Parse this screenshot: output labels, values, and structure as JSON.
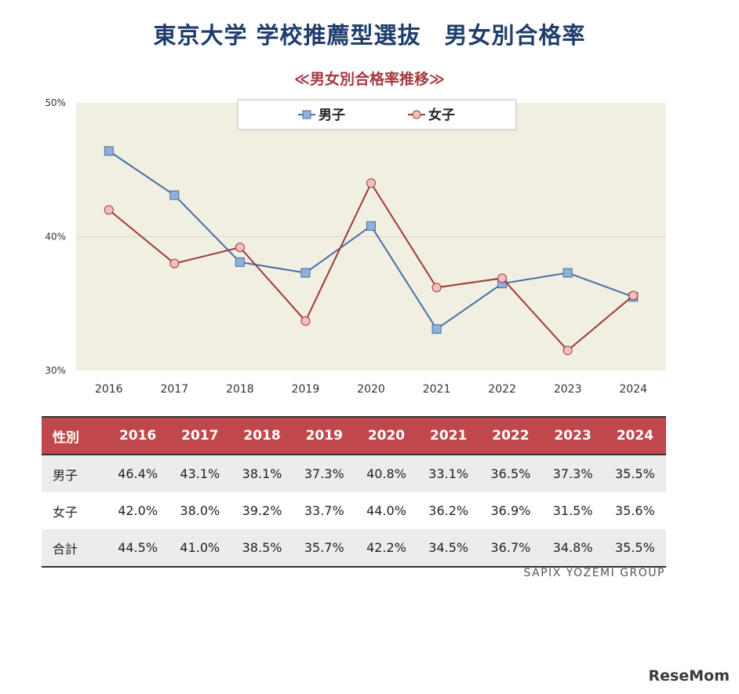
{
  "title": "東京大学 学校推薦型選抜　男女別合格率",
  "subtitle": "≪男女別合格率推移≫",
  "source": "SAPIX YOZEMI GROUP",
  "brand": "ReseMom",
  "colors": {
    "male": "#4a6fa5",
    "male_fill": "#8fb0d8",
    "female": "#9e3a3a",
    "female_fill": "#f0c0c0",
    "plot_bg": "#f1eee2",
    "header_bg": "#c0484c"
  },
  "chart_data": {
    "type": "line",
    "x": [
      "2016",
      "2017",
      "2018",
      "2019",
      "2020",
      "2021",
      "2022",
      "2023",
      "2024"
    ],
    "series": [
      {
        "name": "男子",
        "values": [
          46.4,
          43.1,
          38.1,
          37.3,
          40.8,
          33.1,
          36.5,
          37.3,
          35.5
        ]
      },
      {
        "name": "女子",
        "values": [
          42.0,
          38.0,
          39.2,
          33.7,
          44.0,
          36.2,
          36.9,
          31.5,
          35.6
        ]
      }
    ],
    "ylim": [
      30,
      50
    ],
    "yticks": [
      "30%",
      "40%",
      "50%"
    ],
    "legend": "top-center",
    "grid": true
  },
  "table": {
    "header": [
      "性別",
      "2016",
      "2017",
      "2018",
      "2019",
      "2020",
      "2021",
      "2022",
      "2023",
      "2024"
    ],
    "rows": [
      [
        "男子",
        "46.4%",
        "43.1%",
        "38.1%",
        "37.3%",
        "40.8%",
        "33.1%",
        "36.5%",
        "37.3%",
        "35.5%"
      ],
      [
        "女子",
        "42.0%",
        "38.0%",
        "39.2%",
        "33.7%",
        "44.0%",
        "36.2%",
        "36.9%",
        "31.5%",
        "35.6%"
      ],
      [
        "合計",
        "44.5%",
        "41.0%",
        "38.5%",
        "35.7%",
        "42.2%",
        "34.5%",
        "36.7%",
        "34.8%",
        "35.5%"
      ]
    ]
  }
}
